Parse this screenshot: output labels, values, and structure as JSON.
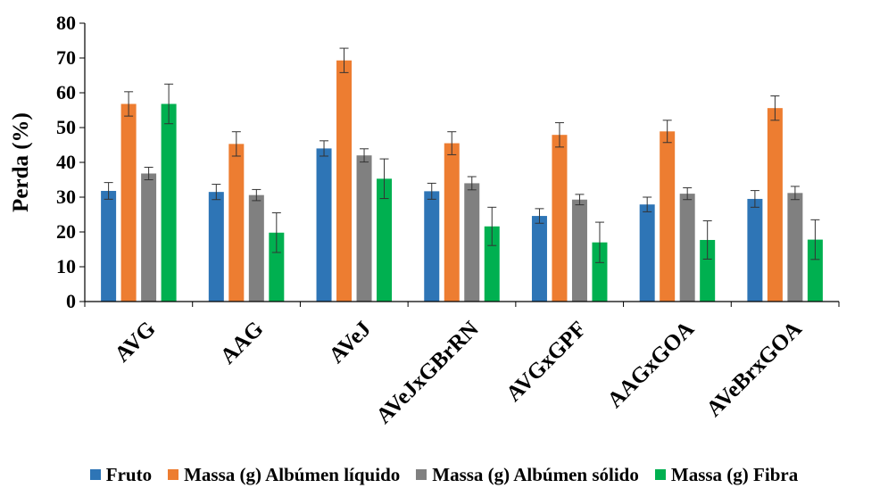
{
  "chart_data": {
    "type": "bar",
    "title": "",
    "xlabel": "",
    "ylabel": "Perda (%)",
    "ylim": [
      0,
      80
    ],
    "yticks": [
      0,
      10,
      20,
      30,
      40,
      50,
      60,
      70,
      80
    ],
    "grid": false,
    "legend_position": "bottom",
    "categories": [
      "AVG",
      "AAG",
      "AVeJ",
      "AVeJxGBrRN",
      "AVGxGPF",
      "AAGxGOA",
      "AVeBrxGOA"
    ],
    "series": [
      {
        "name": "Fruto",
        "color": "#2E75B6",
        "values": [
          31.8,
          31.5,
          44.0,
          31.7,
          24.6,
          27.9,
          29.5
        ],
        "errors": [
          2.4,
          2.2,
          2.2,
          2.3,
          2.1,
          2.1,
          2.4
        ]
      },
      {
        "name": "Massa (g) Albúmen líquido",
        "color": "#ED7D31",
        "values": [
          56.8,
          45.3,
          69.3,
          45.5,
          47.9,
          48.9,
          55.6
        ],
        "errors": [
          3.5,
          3.5,
          3.5,
          3.3,
          3.5,
          3.2,
          3.5
        ]
      },
      {
        "name": "Massa (g) Albúmen sólido",
        "color": "#808080",
        "values": [
          36.8,
          30.6,
          42.0,
          34.0,
          29.3,
          31.0,
          31.2
        ],
        "errors": [
          1.8,
          1.6,
          1.9,
          1.9,
          1.5,
          1.7,
          1.9
        ]
      },
      {
        "name": "Massa (g) Fibra",
        "color": "#00B050",
        "values": [
          56.8,
          19.8,
          35.3,
          21.6,
          17.0,
          17.7,
          17.8
        ],
        "errors": [
          5.7,
          5.7,
          5.7,
          5.5,
          5.8,
          5.5,
          5.7
        ]
      }
    ]
  }
}
